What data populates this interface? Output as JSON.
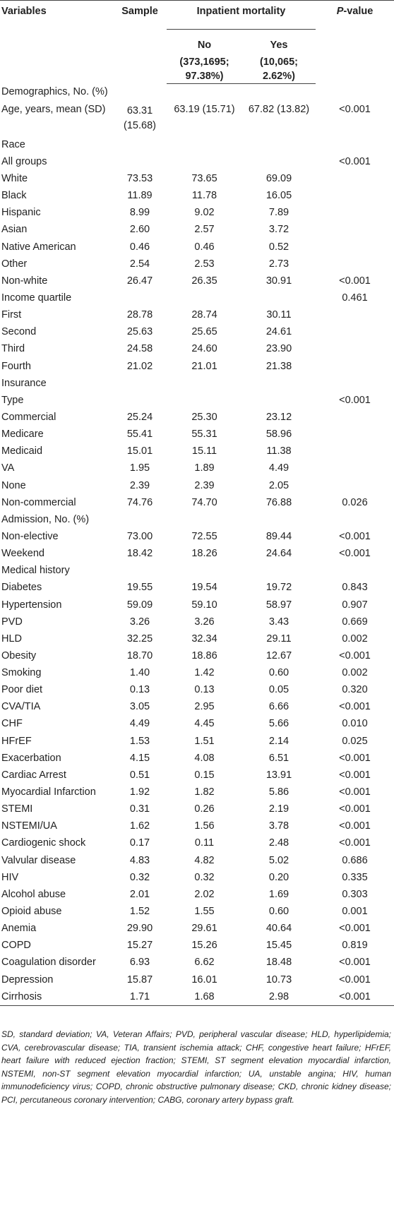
{
  "header": {
    "variables": "Variables",
    "sample": "Sample",
    "inpatient_mortality": "Inpatient mortality",
    "p_value_prefix": "P",
    "p_value_suffix": "-value",
    "no_label": "No",
    "no_n": "(373,1695;",
    "no_pct": "97.38%)",
    "yes_label": "Yes",
    "yes_n": "(10,065;",
    "yes_pct": "2.62%)"
  },
  "rows": [
    {
      "label": "Demographics, No. (%)",
      "sample": "",
      "no": "",
      "yes": "",
      "p": ""
    },
    {
      "label": "Age, years, mean (SD)",
      "sample": "63.31 (15.68)",
      "no": "63.19 (15.71)",
      "yes": "67.82 (13.82)",
      "p": "<0.001"
    },
    {
      "label": "Race",
      "sample": "",
      "no": "",
      "yes": "",
      "p": ""
    },
    {
      "label": "All groups",
      "sample": "",
      "no": "",
      "yes": "",
      "p": "<0.001"
    },
    {
      "label": "White",
      "sample": "73.53",
      "no": "73.65",
      "yes": "69.09",
      "p": ""
    },
    {
      "label": "Black",
      "sample": "11.89",
      "no": "11.78",
      "yes": "16.05",
      "p": ""
    },
    {
      "label": "Hispanic",
      "sample": "8.99",
      "no": "9.02",
      "yes": "7.89",
      "p": ""
    },
    {
      "label": "Asian",
      "sample": "2.60",
      "no": "2.57",
      "yes": "3.72",
      "p": ""
    },
    {
      "label": "Native American",
      "sample": "0.46",
      "no": "0.46",
      "yes": "0.52",
      "p": ""
    },
    {
      "label": "Other",
      "sample": "2.54",
      "no": "2.53",
      "yes": "2.73",
      "p": ""
    },
    {
      "label": "Non-white",
      "sample": "26.47",
      "no": "26.35",
      "yes": "30.91",
      "p": "<0.001"
    },
    {
      "label": "Income quartile",
      "sample": "",
      "no": "",
      "yes": "",
      "p": "0.461"
    },
    {
      "label": "First",
      "sample": "28.78",
      "no": "28.74",
      "yes": "30.11",
      "p": ""
    },
    {
      "label": "Second",
      "sample": "25.63",
      "no": "25.65",
      "yes": "24.61",
      "p": ""
    },
    {
      "label": "Third",
      "sample": "24.58",
      "no": "24.60",
      "yes": "23.90",
      "p": ""
    },
    {
      "label": "Fourth",
      "sample": "21.02",
      "no": "21.01",
      "yes": "21.38",
      "p": ""
    },
    {
      "label": "Insurance",
      "sample": "",
      "no": "",
      "yes": "",
      "p": ""
    },
    {
      "label": "Type",
      "sample": "",
      "no": "",
      "yes": "",
      "p": "<0.001"
    },
    {
      "label": "Commercial",
      "sample": "25.24",
      "no": "25.30",
      "yes": "23.12",
      "p": ""
    },
    {
      "label": "Medicare",
      "sample": "55.41",
      "no": "55.31",
      "yes": "58.96",
      "p": ""
    },
    {
      "label": "Medicaid",
      "sample": "15.01",
      "no": "15.11",
      "yes": "11.38",
      "p": ""
    },
    {
      "label": "VA",
      "sample": "1.95",
      "no": "1.89",
      "yes": "4.49",
      "p": ""
    },
    {
      "label": "None",
      "sample": "2.39",
      "no": "2.39",
      "yes": "2.05",
      "p": ""
    },
    {
      "label": "Non-commercial",
      "sample": "74.76",
      "no": "74.70",
      "yes": "76.88",
      "p": "0.026"
    },
    {
      "label": "Admission, No. (%)",
      "sample": "",
      "no": "",
      "yes": "",
      "p": ""
    },
    {
      "label": "Non-elective",
      "sample": "73.00",
      "no": "72.55",
      "yes": "89.44",
      "p": "<0.001"
    },
    {
      "label": "Weekend",
      "sample": "18.42",
      "no": "18.26",
      "yes": "24.64",
      "p": "<0.001"
    },
    {
      "label": "Medical history",
      "sample": "",
      "no": "",
      "yes": "",
      "p": ""
    },
    {
      "label": "Diabetes",
      "sample": "19.55",
      "no": "19.54",
      "yes": "19.72",
      "p": "0.843"
    },
    {
      "label": "Hypertension",
      "sample": "59.09",
      "no": "59.10",
      "yes": "58.97",
      "p": "0.907"
    },
    {
      "label": "PVD",
      "sample": "3.26",
      "no": "3.26",
      "yes": "3.43",
      "p": "0.669"
    },
    {
      "label": "HLD",
      "sample": "32.25",
      "no": "32.34",
      "yes": "29.11",
      "p": "0.002"
    },
    {
      "label": "Obesity",
      "sample": "18.70",
      "no": "18.86",
      "yes": "12.67",
      "p": "<0.001"
    },
    {
      "label": "Smoking",
      "sample": "1.40",
      "no": "1.42",
      "yes": "0.60",
      "p": "0.002"
    },
    {
      "label": "Poor diet",
      "sample": "0.13",
      "no": "0.13",
      "yes": "0.05",
      "p": "0.320"
    },
    {
      "label": "CVA/TIA",
      "sample": "3.05",
      "no": "2.95",
      "yes": "6.66",
      "p": "<0.001"
    },
    {
      "label": "CHF",
      "sample": "4.49",
      "no": "4.45",
      "yes": "5.66",
      "p": "0.010"
    },
    {
      "label": "HFrEF",
      "sample": "1.53",
      "no": "1.51",
      "yes": "2.14",
      "p": "0.025"
    },
    {
      "label": "Exacerbation",
      "sample": "4.15",
      "no": "4.08",
      "yes": "6.51",
      "p": "<0.001"
    },
    {
      "label": "Cardiac Arrest",
      "sample": "0.51",
      "no": "0.15",
      "yes": "13.91",
      "p": "<0.001"
    },
    {
      "label": "Myocardial Infarction",
      "sample": "1.92",
      "no": "1.82",
      "yes": "5.86",
      "p": "<0.001"
    },
    {
      "label": "STEMI",
      "sample": "0.31",
      "no": "0.26",
      "yes": "2.19",
      "p": "<0.001"
    },
    {
      "label": "NSTEMI/UA",
      "sample": "1.62",
      "no": "1.56",
      "yes": "3.78",
      "p": "<0.001"
    },
    {
      "label": "Cardiogenic shock",
      "sample": "0.17",
      "no": "0.11",
      "yes": "2.48",
      "p": "<0.001"
    },
    {
      "label": "Valvular disease",
      "sample": "4.83",
      "no": "4.82",
      "yes": "5.02",
      "p": "0.686"
    },
    {
      "label": "HIV",
      "sample": "0.32",
      "no": "0.32",
      "yes": "0.20",
      "p": "0.335"
    },
    {
      "label": "Alcohol abuse",
      "sample": "2.01",
      "no": "2.02",
      "yes": "1.69",
      "p": "0.303"
    },
    {
      "label": "Opioid abuse",
      "sample": "1.52",
      "no": "1.55",
      "yes": "0.60",
      "p": "0.001"
    },
    {
      "label": "Anemia",
      "sample": "29.90",
      "no": "29.61",
      "yes": "40.64",
      "p": "<0.001"
    },
    {
      "label": "COPD",
      "sample": "15.27",
      "no": "15.26",
      "yes": "15.45",
      "p": "0.819"
    },
    {
      "label": "Coagulation disorder",
      "sample": "6.93",
      "no": "6.62",
      "yes": "18.48",
      "p": "<0.001"
    },
    {
      "label": "Depression",
      "sample": "15.87",
      "no": "16.01",
      "yes": "10.73",
      "p": "<0.001"
    },
    {
      "label": "Cirrhosis",
      "sample": "1.71",
      "no": "1.68",
      "yes": "2.98",
      "p": "<0.001"
    }
  ],
  "footnote": "SD, standard deviation; VA, Veteran Affairs; PVD, peripheral vascular disease; HLD, hyperlipidemia; CVA, cerebrovascular disease; TIA, transient ischemia attack; CHF, congestive heart failure; HFrEF, heart failure with reduced ejection fraction; STEMI, ST segment elevation myocardial infarction, NSTEMI, non-ST segment elevation myocardial infarction; UA, unstable angina; HIV, human immunodeficiency virus; COPD, chronic obstructive pulmonary disease; CKD, chronic kidney disease; PCI, percutaneous coronary intervention; CABG, coronary artery bypass graft."
}
